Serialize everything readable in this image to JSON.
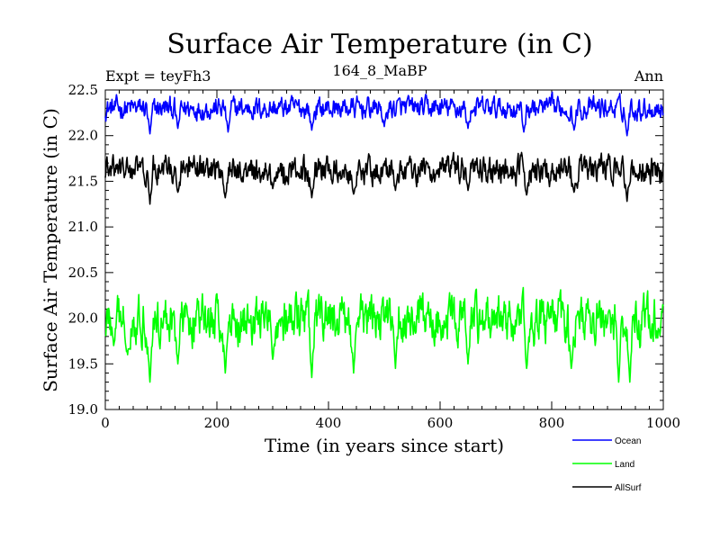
{
  "chart_data": {
    "type": "line",
    "title": "Surface Air Temperature (in C)",
    "subtitle_left": "Expt = teyFh3",
    "subtitle_center": "164_8_MaBP",
    "subtitle_right": "Ann",
    "xlabel": "Time (in years since start)",
    "ylabel": "Surface Air Temperature (in C)",
    "xlim": [
      0,
      1000
    ],
    "ylim": [
      19.0,
      22.5
    ],
    "x_ticks": [
      0,
      200,
      400,
      600,
      800,
      1000
    ],
    "x_tick_labels": [
      "0",
      "200",
      "400",
      "600",
      "800",
      "1000"
    ],
    "y_ticks": [
      19.0,
      19.5,
      20.0,
      20.5,
      21.0,
      21.5,
      22.0,
      22.5
    ],
    "y_tick_labels": [
      "19.0",
      "19.5",
      "20.0",
      "20.5",
      "21.0",
      "21.5",
      "22.0",
      "22.5"
    ],
    "grid": false,
    "legend_position": "bottom-right",
    "series": [
      {
        "name": "Ocean",
        "color": "#0000ff",
        "mean": 22.3,
        "summary": {
          "min": 22.0,
          "max": 22.5
        },
        "dips": [
          [
            80,
            22.02
          ],
          [
            130,
            22.08
          ],
          [
            220,
            22.04
          ],
          [
            370,
            22.06
          ],
          [
            500,
            22.1
          ],
          [
            650,
            22.08
          ],
          [
            750,
            22.04
          ],
          [
            840,
            22.06
          ],
          [
            935,
            22.0
          ]
        ]
      },
      {
        "name": "Land",
        "color": "#00ff00",
        "mean": 19.98,
        "summary": {
          "min": 19.3,
          "max": 20.35
        },
        "dips": [
          [
            15,
            19.7
          ],
          [
            40,
            19.6
          ],
          [
            80,
            19.3
          ],
          [
            130,
            19.5
          ],
          [
            215,
            19.4
          ],
          [
            300,
            19.55
          ],
          [
            370,
            19.35
          ],
          [
            445,
            19.4
          ],
          [
            520,
            19.45
          ],
          [
            650,
            19.5
          ],
          [
            755,
            19.45
          ],
          [
            835,
            19.45
          ],
          [
            920,
            19.3
          ],
          [
            940,
            19.3
          ]
        ]
      },
      {
        "name": "AllSurf",
        "color": "#000000",
        "mean": 21.62,
        "summary": {
          "min": 21.25,
          "max": 21.88
        },
        "dips": [
          [
            80,
            21.25
          ],
          [
            130,
            21.38
          ],
          [
            215,
            21.32
          ],
          [
            300,
            21.42
          ],
          [
            370,
            21.32
          ],
          [
            445,
            21.36
          ],
          [
            520,
            21.4
          ],
          [
            650,
            21.4
          ],
          [
            755,
            21.35
          ],
          [
            840,
            21.38
          ],
          [
            935,
            21.28
          ]
        ]
      }
    ]
  }
}
